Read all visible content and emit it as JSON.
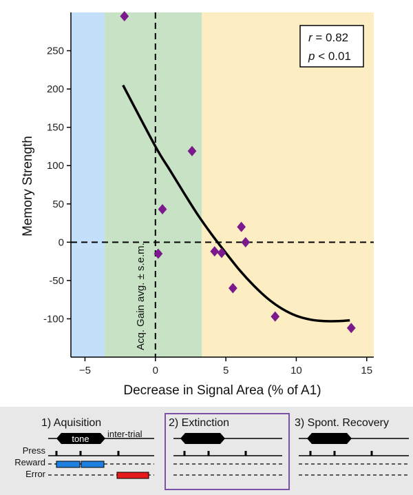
{
  "chart_data": {
    "type": "scatter",
    "xlabel": "Decrease in Signal Area (% of A1)",
    "ylabel": "Memory Strength",
    "xlim": [
      -6,
      15.5
    ],
    "ylim": [
      -150,
      300
    ],
    "xticks": [
      -5,
      0,
      5,
      10,
      15
    ],
    "yticks": [
      250,
      200,
      150,
      100,
      50,
      0,
      -50,
      -100
    ],
    "xtick_labels": [
      "−5",
      "0",
      "5",
      "10",
      "15"
    ],
    "ytick_labels": [
      "250",
      "200",
      "150",
      "100",
      "50",
      "0",
      "-50",
      "-100"
    ],
    "grid": false,
    "colors": {
      "points": "#7a1a8c",
      "fit": "#000000",
      "band_blue": "#c4dffa",
      "band_green": "#c7e2c4",
      "band_yellow": "#fdedc2"
    },
    "bands": [
      {
        "name": "blue",
        "x": [
          -6,
          -3.6
        ]
      },
      {
        "name": "green",
        "x": [
          -3.6,
          3.3
        ]
      },
      {
        "name": "yellow",
        "x": [
          3.3,
          15.5
        ]
      }
    ],
    "points": [
      {
        "x": -2.2,
        "y": 295
      },
      {
        "x": 2.6,
        "y": 119
      },
      {
        "x": 0.5,
        "y": 43
      },
      {
        "x": 0.2,
        "y": -15
      },
      {
        "x": 4.2,
        "y": -12
      },
      {
        "x": 4.7,
        "y": -14
      },
      {
        "x": 6.1,
        "y": 20
      },
      {
        "x": 6.4,
        "y": 0
      },
      {
        "x": 5.5,
        "y": -60
      },
      {
        "x": 8.5,
        "y": -97
      },
      {
        "x": 13.9,
        "y": -112
      }
    ],
    "fit_curve": [
      {
        "x": -2.3,
        "y": 205
      },
      {
        "x": 0,
        "y": 125
      },
      {
        "x": 1,
        "y": 95
      },
      {
        "x": 2,
        "y": 65
      },
      {
        "x": 3,
        "y": 36
      },
      {
        "x": 4,
        "y": 10
      },
      {
        "x": 5,
        "y": -14
      },
      {
        "x": 6,
        "y": -37
      },
      {
        "x": 7,
        "y": -57
      },
      {
        "x": 8,
        "y": -74
      },
      {
        "x": 9,
        "y": -87
      },
      {
        "x": 10,
        "y": -96
      },
      {
        "x": 11,
        "y": -101
      },
      {
        "x": 12,
        "y": -103
      },
      {
        "x": 13,
        "y": -103
      },
      {
        "x": 13.8,
        "y": -102
      }
    ],
    "vline_x": 0,
    "hline_y": 0,
    "vline_label": "Acq. Gain avg. ± s.e.m.",
    "stats": {
      "r_symbol": "r",
      "r_value": " = 0.82",
      "p_symbol": "p",
      "p_value": " < 0.01"
    }
  },
  "protocol": {
    "phases": [
      {
        "title": "1) Aquisition",
        "tone": "tone",
        "inter_trial": "inter-trial"
      },
      {
        "title": "2) Extinction"
      },
      {
        "title": "3) Spont. Recovery"
      }
    ],
    "row_labels": {
      "press": "Press",
      "reward": "Reward",
      "error": "Error"
    },
    "colors": {
      "panel_bg": "#e8e8e8",
      "highlight_border": "#7b52a8",
      "reward": "#1f7fe0",
      "error": "#e51b1b"
    }
  }
}
